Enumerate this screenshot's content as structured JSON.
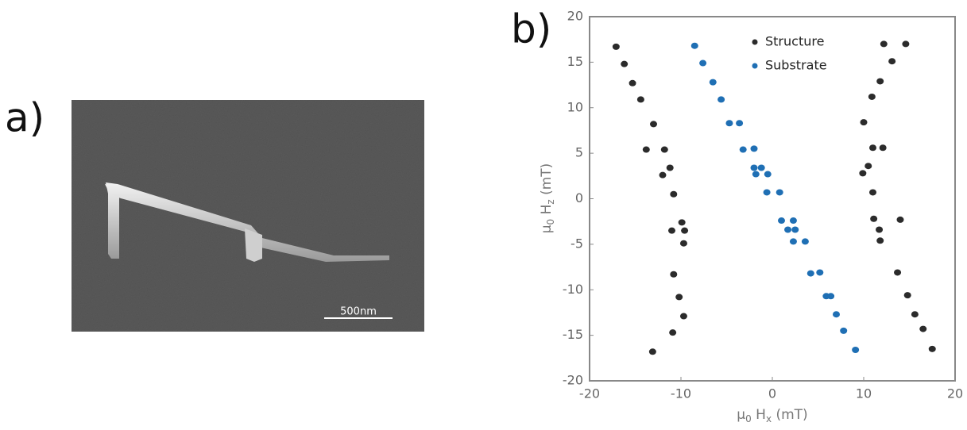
{
  "panels": {
    "a": {
      "label": "a)",
      "scale_bar": "500nm"
    },
    "b": {
      "label": "b)"
    }
  },
  "chart_data": {
    "type": "scatter",
    "xlabel": [
      "μ",
      "0",
      " H",
      "x",
      " (mT)"
    ],
    "ylabel": [
      "μ",
      "0",
      " H",
      "z",
      " (mT)"
    ],
    "xlim": [
      -20,
      20
    ],
    "xticks": [
      -20,
      -10,
      0,
      10,
      20
    ],
    "ylim": [
      -20,
      20
    ],
    "yticks": [
      -20,
      -15,
      -10,
      -5,
      0,
      5,
      10,
      15,
      20
    ],
    "legend": "upper center",
    "series": [
      {
        "name": "Structure",
        "color": "#2b2b2b",
        "x": [
          -17.1,
          -16.2,
          -15.3,
          -14.4,
          -13.0,
          -13.8,
          -11.8,
          -12.0,
          -11.2,
          -10.8,
          -9.9,
          -11.0,
          -9.6,
          -9.7,
          -10.8,
          -10.2,
          -9.7,
          -10.9,
          -13.1,
          12.2,
          14.6,
          13.1,
          11.8,
          10.9,
          10.0,
          11.0,
          12.1,
          10.5,
          9.9,
          11.0,
          11.1,
          14.0,
          11.7,
          11.8,
          13.7,
          14.8,
          15.6,
          16.5,
          17.5
        ],
        "values": [
          16.7,
          14.8,
          12.7,
          10.9,
          8.2,
          5.4,
          5.4,
          2.6,
          3.4,
          0.5,
          -2.6,
          -3.5,
          -3.5,
          -4.9,
          -8.3,
          -10.8,
          -12.9,
          -14.7,
          -16.8,
          17.0,
          17.0,
          15.1,
          12.9,
          11.2,
          8.4,
          5.6,
          5.6,
          3.6,
          2.8,
          0.7,
          -2.2,
          -2.3,
          -3.4,
          -4.6,
          -8.1,
          -10.6,
          -12.7,
          -14.3,
          -16.5
        ]
      },
      {
        "name": "Substrate",
        "color": "#1f6fb4",
        "x": [
          -8.5,
          -7.6,
          -6.5,
          -5.6,
          -4.7,
          -3.6,
          -3.2,
          -2.0,
          -2.0,
          -1.2,
          -1.8,
          -0.5,
          -0.6,
          0.8,
          1.0,
          2.3,
          1.7,
          2.5,
          2.3,
          3.6,
          4.2,
          5.2,
          5.9,
          6.4,
          7.0,
          7.8,
          9.1
        ],
        "values": [
          16.8,
          14.9,
          12.8,
          10.9,
          8.3,
          8.3,
          5.4,
          5.5,
          3.4,
          3.4,
          2.7,
          2.7,
          0.7,
          0.7,
          -2.4,
          -2.4,
          -3.4,
          -3.4,
          -4.7,
          -4.7,
          -8.2,
          -8.1,
          -10.7,
          -10.7,
          -12.7,
          -14.5,
          -16.6
        ]
      }
    ]
  }
}
